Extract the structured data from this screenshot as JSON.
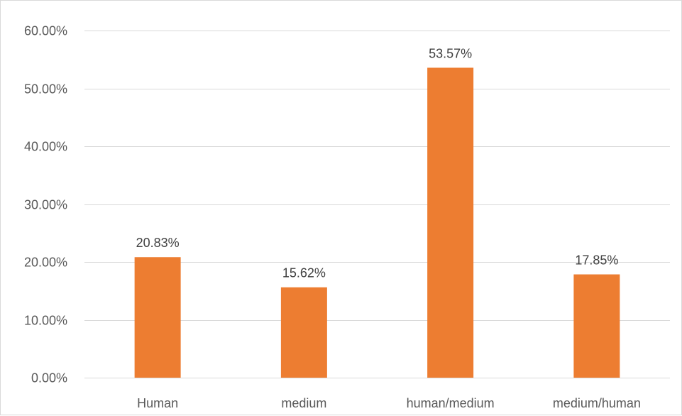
{
  "chart_data": {
    "type": "bar",
    "title": "",
    "xlabel": "",
    "ylabel": "",
    "categories": [
      "Human",
      "medium",
      "human/medium",
      "medium/human"
    ],
    "values": [
      20.83,
      15.62,
      53.57,
      17.85
    ],
    "data_labels": [
      "20.83%",
      "15.62%",
      "53.57%",
      "17.85%"
    ],
    "ylim": [
      0,
      60
    ],
    "y_ticks": [
      0,
      10,
      20,
      30,
      40,
      50,
      60
    ],
    "y_tick_labels": [
      "0.00%",
      "10.00%",
      "20.00%",
      "30.00%",
      "40.00%",
      "50.00%",
      "60.00%"
    ],
    "grid": true,
    "legend": "none",
    "bar_color": "#ED7D31",
    "grid_color": "#d9d9d9"
  }
}
